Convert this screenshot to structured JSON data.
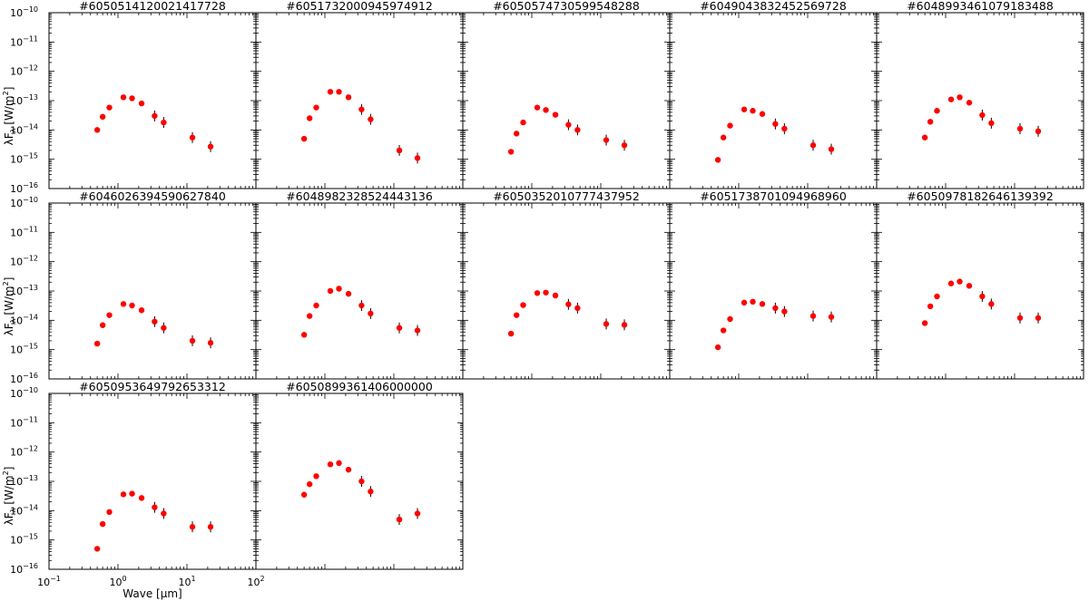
{
  "figure": {
    "xlabel": "Wave [μm]",
    "ylabel": "λF",
    "ylabel_sub": "λ",
    "ylabel_unit": "[W/m",
    "ylabel_unit_sup": "2",
    "ylabel_unit_close": "]",
    "y_tick_labels": [
      "10",
      "10",
      "10",
      "10",
      "10",
      "10",
      "10"
    ],
    "y_tick_exponents": [
      "−10",
      "−11",
      "−12",
      "−13",
      "−14",
      "−15",
      "−16"
    ],
    "x_tick_labels": [
      "10",
      "10",
      "10",
      "10"
    ],
    "x_tick_exponents": [
      "−1",
      "0",
      "1",
      "2"
    ]
  },
  "colors": {
    "marker": "#ff0000",
    "errorbar": "#000000",
    "frame": "#000000"
  },
  "chart_data": [
    {
      "type": "scatter",
      "title": "#6050514120021417728",
      "x_scale": "log",
      "y_scale": "log",
      "xlim": [
        0.1,
        100
      ],
      "ylim": [
        1e-16,
        1e-10
      ],
      "x": [
        0.5,
        0.6,
        0.75,
        1.2,
        1.6,
        2.2,
        3.4,
        4.6,
        12,
        22
      ],
      "y": [
        1e-14,
        2.8e-14,
        5.8e-14,
        1.3e-13,
        1.2e-13,
        8e-14,
        3e-14,
        1.8e-14,
        5.5e-15,
        2.7e-15
      ]
    },
    {
      "type": "scatter",
      "title": "#6051732000945974912",
      "x_scale": "log",
      "y_scale": "log",
      "xlim": [
        0.1,
        100
      ],
      "ylim": [
        1e-16,
        1e-10
      ],
      "x": [
        0.5,
        0.6,
        0.75,
        1.2,
        1.6,
        2.2,
        3.4,
        4.6,
        12,
        22
      ],
      "y": [
        5e-15,
        2.5e-14,
        5.8e-14,
        2e-13,
        2e-13,
        1.3e-13,
        5e-14,
        2.3e-14,
        2e-15,
        1.1e-15
      ]
    },
    {
      "type": "scatter",
      "title": "#6050574730599548288",
      "x_scale": "log",
      "y_scale": "log",
      "xlim": [
        0.1,
        100
      ],
      "ylim": [
        1e-16,
        1e-10
      ],
      "x": [
        0.5,
        0.6,
        0.75,
        1.2,
        1.6,
        2.2,
        3.4,
        4.6,
        12,
        22
      ],
      "y": [
        1.8e-15,
        7.5e-15,
        1.8e-14,
        5.8e-14,
        4.8e-14,
        3.3e-14,
        1.5e-14,
        1e-14,
        4.5e-15,
        3e-15
      ]
    },
    {
      "type": "scatter",
      "title": "#6049043832452569728",
      "x_scale": "log",
      "y_scale": "log",
      "xlim": [
        0.1,
        100
      ],
      "ylim": [
        1e-16,
        1e-10
      ],
      "x": [
        0.5,
        0.6,
        0.75,
        1.2,
        1.6,
        2.2,
        3.4,
        4.6,
        12,
        22
      ],
      "y": [
        9.5e-16,
        5.5e-15,
        1.4e-14,
        5e-14,
        4.5e-14,
        3.5e-14,
        1.6e-14,
        1.1e-14,
        3e-15,
        2.2e-15
      ]
    },
    {
      "type": "scatter",
      "title": "#6048993461079183488",
      "x_scale": "log",
      "y_scale": "log",
      "xlim": [
        0.1,
        100
      ],
      "ylim": [
        1e-16,
        1e-10
      ],
      "x": [
        0.5,
        0.6,
        0.75,
        1.2,
        1.6,
        2.2,
        3.4,
        4.6,
        12,
        22
      ],
      "y": [
        5.5e-15,
        1.9e-14,
        4.5e-14,
        1.1e-13,
        1.3e-13,
        8.5e-14,
        3.2e-14,
        1.7e-14,
        1.1e-14,
        9e-15
      ]
    },
    {
      "type": "scatter",
      "title": "#6046026394590627840",
      "x_scale": "log",
      "y_scale": "log",
      "xlim": [
        0.1,
        100
      ],
      "ylim": [
        1e-16,
        1e-10
      ],
      "x": [
        0.5,
        0.6,
        0.75,
        1.2,
        1.6,
        2.2,
        3.4,
        4.6,
        12,
        22
      ],
      "y": [
        1.6e-15,
        6.8e-15,
        1.5e-14,
        3.6e-14,
        3.2e-14,
        2.2e-14,
        9e-15,
        5.5e-15,
        2e-15,
        1.7e-15
      ]
    },
    {
      "type": "scatter",
      "title": "#6048982328524443136",
      "x_scale": "log",
      "y_scale": "log",
      "xlim": [
        0.1,
        100
      ],
      "ylim": [
        1e-16,
        1e-10
      ],
      "x": [
        0.5,
        0.6,
        0.75,
        1.2,
        1.6,
        2.2,
        3.4,
        4.6,
        12,
        22
      ],
      "y": [
        3.2e-15,
        1.4e-14,
        3.2e-14,
        1e-13,
        1.2e-13,
        8e-14,
        3.2e-14,
        1.7e-14,
        5.5e-15,
        4.5e-15
      ]
    },
    {
      "type": "scatter",
      "title": "#6050352010777437952",
      "x_scale": "log",
      "y_scale": "log",
      "xlim": [
        0.1,
        100
      ],
      "ylim": [
        1e-16,
        1e-10
      ],
      "x": [
        0.5,
        0.6,
        0.75,
        1.2,
        1.6,
        2.2,
        3.4,
        4.6,
        12,
        22
      ],
      "y": [
        3.5e-15,
        1.5e-14,
        3.3e-14,
        8.5e-14,
        8.8e-14,
        7e-14,
        3.5e-14,
        2.6e-14,
        7.5e-15,
        7e-15
      ]
    },
    {
      "type": "scatter",
      "title": "#6051738701094968960",
      "x_scale": "log",
      "y_scale": "log",
      "xlim": [
        0.1,
        100
      ],
      "ylim": [
        1e-16,
        1e-10
      ],
      "x": [
        0.5,
        0.6,
        0.75,
        1.2,
        1.6,
        2.2,
        3.4,
        4.6,
        12,
        22
      ],
      "y": [
        1.2e-15,
        4.5e-15,
        1.1e-14,
        4e-14,
        4.3e-14,
        3.6e-14,
        2.6e-14,
        2e-14,
        1.4e-14,
        1.3e-14
      ]
    },
    {
      "type": "scatter",
      "title": "#6050978182646139392",
      "x_scale": "log",
      "y_scale": "log",
      "xlim": [
        0.1,
        100
      ],
      "ylim": [
        1e-16,
        1e-10
      ],
      "x": [
        0.5,
        0.6,
        0.75,
        1.2,
        1.6,
        2.2,
        3.4,
        4.6,
        12,
        22
      ],
      "y": [
        8e-15,
        3e-14,
        6.5e-14,
        1.8e-13,
        2.1e-13,
        1.5e-13,
        6.5e-14,
        3.6e-14,
        1.2e-14,
        1.2e-14
      ]
    },
    {
      "type": "scatter",
      "title": "#6050953649792653312",
      "x_scale": "log",
      "y_scale": "log",
      "xlim": [
        0.1,
        100
      ],
      "ylim": [
        1e-16,
        1e-10
      ],
      "x": [
        0.5,
        0.6,
        0.75,
        1.2,
        1.6,
        2.2,
        3.4,
        4.6,
        12,
        22
      ],
      "y": [
        5e-16,
        3.5e-15,
        9e-15,
        3.6e-14,
        3.8e-14,
        2.7e-14,
        1.3e-14,
        8e-15,
        2.8e-15,
        2.8e-15
      ]
    },
    {
      "type": "scatter",
      "title": "#6050899361406000000",
      "x_scale": "log",
      "y_scale": "log",
      "xlim": [
        0.1,
        100
      ],
      "ylim": [
        1e-16,
        1e-10
      ],
      "x": [
        0.5,
        0.6,
        0.75,
        1.2,
        1.6,
        2.2,
        3.4,
        4.6,
        12,
        22
      ],
      "y": [
        3.5e-14,
        8e-14,
        1.5e-13,
        3.8e-13,
        4.2e-13,
        2.5e-13,
        1e-13,
        4.5e-14,
        5e-15,
        8e-15
      ]
    }
  ]
}
